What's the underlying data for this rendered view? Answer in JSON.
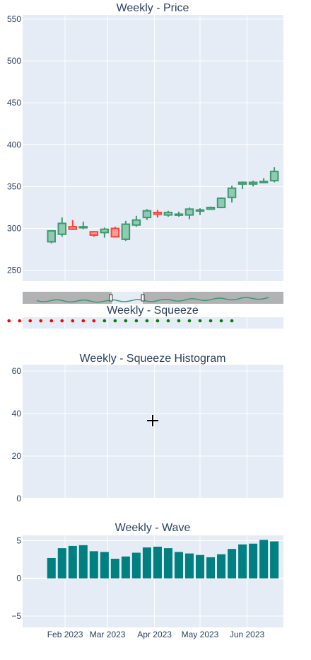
{
  "colors": {
    "plot_bg": "#e5ecf6",
    "grid": "#ffffff",
    "increasing": "#3d9970",
    "increasing_fill": "#8fcbb1",
    "decreasing": "#ff4136",
    "decreasing_fill": "#ff9d98",
    "squeeze_on": "#ff0000",
    "squeeze_off": "#008000",
    "wave_bar": "#008080",
    "rangeslider_bg": "#a8a8a8",
    "text": "#2a3f5f"
  },
  "cursor_icon": "crosshair-move-cursor-icon",
  "chart_data": [
    {
      "id": "price",
      "type": "candlestick",
      "title": "Weekly - Price",
      "ylim": [
        237,
        555
      ],
      "yticks": [
        "250",
        "300",
        "350",
        "400",
        "450",
        "500",
        "550"
      ],
      "x": [
        "2023-01-23",
        "2023-01-30",
        "2023-02-06",
        "2023-02-13",
        "2023-02-20",
        "2023-02-27",
        "2023-03-06",
        "2023-03-13",
        "2023-03-20",
        "2023-03-27",
        "2023-04-03",
        "2023-04-10",
        "2023-04-17",
        "2023-04-24",
        "2023-05-01",
        "2023-05-08",
        "2023-05-15",
        "2023-05-22",
        "2023-05-29",
        "2023-06-05",
        "2023-06-12",
        "2023-06-19"
      ],
      "open": [
        284,
        293,
        302,
        301,
        296,
        295,
        300,
        287,
        304,
        313,
        319,
        316,
        316,
        316,
        321,
        323,
        325,
        337,
        353,
        353,
        356,
        357
      ],
      "close": [
        297,
        306,
        299,
        302,
        292,
        299,
        290,
        305,
        310,
        321,
        317,
        319,
        317,
        323,
        322,
        325,
        336,
        348,
        355,
        355,
        356,
        368
      ],
      "high": [
        298,
        313,
        310,
        308,
        297,
        301,
        302,
        309,
        315,
        323,
        322,
        321,
        320,
        325,
        324,
        326,
        337,
        351,
        356,
        357,
        360,
        373
      ],
      "low": [
        282,
        290,
        298,
        299,
        290,
        289,
        289,
        285,
        302,
        310,
        313,
        314,
        314,
        311,
        316,
        322,
        324,
        331,
        347,
        350,
        354,
        355
      ],
      "rangeslider": true
    },
    {
      "id": "squeeze",
      "type": "scatter",
      "title": "Weekly - Squeeze",
      "x": [
        "2022-12-26",
        "2023-01-02",
        "2023-01-09",
        "2023-01-16",
        "2023-01-23",
        "2023-01-30",
        "2023-02-06",
        "2023-02-13",
        "2023-02-20",
        "2023-02-27",
        "2023-03-06",
        "2023-03-13",
        "2023-03-20",
        "2023-03-27",
        "2023-04-03",
        "2023-04-10",
        "2023-04-17",
        "2023-04-24",
        "2023-05-01",
        "2023-05-08",
        "2023-05-15",
        "2023-05-22"
      ],
      "state": [
        "on",
        "on",
        "on",
        "on",
        "on",
        "on",
        "on",
        "on",
        "on",
        "off",
        "off",
        "off",
        "off",
        "off",
        "off",
        "off",
        "off",
        "off",
        "off",
        "off",
        "off",
        "off"
      ]
    },
    {
      "id": "histogram",
      "type": "bar",
      "title": "Weekly - Squeeze Histogram",
      "ylim": [
        0,
        63
      ],
      "yticks": [
        "0",
        "20",
        "40",
        "60"
      ],
      "values": []
    },
    {
      "id": "wave",
      "type": "bar",
      "title": "Weekly - Wave",
      "ylim": [
        -6.5,
        5.7
      ],
      "yticks": [
        "−5",
        "0",
        "5"
      ],
      "xticks": [
        "Feb 2023",
        "Mar 2023",
        "Apr 2023",
        "May 2023",
        "Jun 2023"
      ],
      "x": [
        "2023-01-23",
        "2023-01-30",
        "2023-02-06",
        "2023-02-13",
        "2023-02-20",
        "2023-02-27",
        "2023-03-06",
        "2023-03-13",
        "2023-03-20",
        "2023-03-27",
        "2023-04-03",
        "2023-04-10",
        "2023-04-17",
        "2023-04-24",
        "2023-05-01",
        "2023-05-08",
        "2023-05-15",
        "2023-05-22",
        "2023-05-29",
        "2023-06-05",
        "2023-06-12",
        "2023-06-19"
      ],
      "values": [
        2.7,
        4.0,
        4.3,
        4.4,
        3.6,
        3.5,
        2.6,
        2.9,
        3.4,
        4.1,
        4.2,
        4.0,
        3.5,
        3.3,
        3.1,
        2.8,
        3.2,
        3.9,
        4.5,
        4.6,
        5.1,
        4.9
      ]
    }
  ]
}
